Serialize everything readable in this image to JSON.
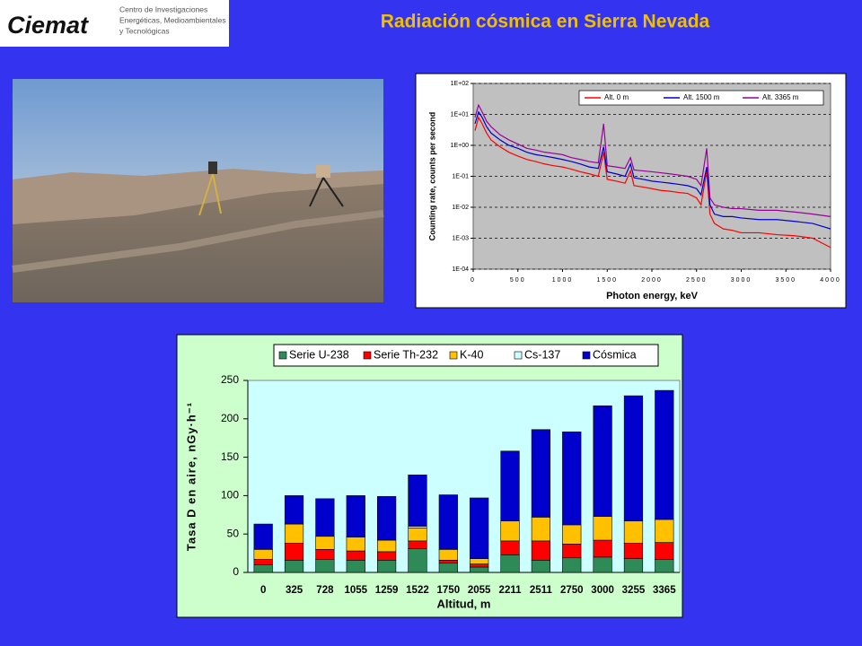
{
  "header": {
    "logo": "Ciemat",
    "logo_lines": [
      "Centro de Investigaciones",
      "Energéticas, Medioambientales",
      "y Tecnológicas"
    ],
    "title": "Radiación cósmica en Sierra Nevada"
  },
  "chart_data": [
    {
      "type": "line",
      "x_label": "Photon energy, keV",
      "y_label": "Counting rate, counts per second",
      "log_y": true,
      "grid": true,
      "legend": "upper right",
      "xlim": [
        0,
        4000
      ],
      "xticks": [
        0,
        500,
        1000,
        1500,
        2000,
        2500,
        3000,
        3500,
        4000
      ],
      "ylim": [
        0.0001,
        100
      ],
      "yticks": [
        {
          "value": 0.0001,
          "label": "1E-04"
        },
        {
          "value": 0.001,
          "label": "1E-03"
        },
        {
          "value": 0.01,
          "label": "1E-02"
        },
        {
          "value": 0.1,
          "label": "1E-01"
        },
        {
          "value": 1,
          "label": "1E+00"
        },
        {
          "value": 10,
          "label": "1E+01"
        },
        {
          "value": 100,
          "label": "1E+02"
        }
      ],
      "x": [
        20,
        60,
        100,
        150,
        200,
        300,
        400,
        500,
        600,
        700,
        800,
        900,
        1000,
        1100,
        1200,
        1300,
        1400,
        1460,
        1500,
        1600,
        1700,
        1760,
        1800,
        1900,
        2000,
        2100,
        2200,
        2300,
        2400,
        2500,
        2550,
        2614,
        2650,
        2700,
        2800,
        2900,
        3000,
        3200,
        3400,
        3600,
        3800,
        4000
      ],
      "series": [
        {
          "name": "Alt. 0 m",
          "color": "#ff0000",
          "values": [
            3,
            8,
            5,
            2.5,
            1.5,
            0.9,
            0.6,
            0.45,
            0.35,
            0.3,
            0.25,
            0.22,
            0.2,
            0.17,
            0.14,
            0.12,
            0.1,
            0.6,
            0.08,
            0.07,
            0.06,
            0.15,
            0.05,
            0.045,
            0.04,
            0.035,
            0.033,
            0.03,
            0.028,
            0.02,
            0.012,
            0.15,
            0.006,
            0.003,
            0.002,
            0.0018,
            0.0015,
            0.0015,
            0.0013,
            0.0012,
            0.001,
            0.0005
          ]
        },
        {
          "name": "Alt. 1500 m",
          "color": "#0000cc",
          "values": [
            5,
            12,
            8,
            4,
            2.5,
            1.5,
            1,
            0.8,
            0.6,
            0.5,
            0.45,
            0.4,
            0.35,
            0.3,
            0.25,
            0.2,
            0.18,
            0.9,
            0.14,
            0.12,
            0.1,
            0.25,
            0.09,
            0.08,
            0.07,
            0.065,
            0.06,
            0.055,
            0.05,
            0.04,
            0.025,
            0.2,
            0.012,
            0.006,
            0.005,
            0.005,
            0.0045,
            0.004,
            0.004,
            0.0035,
            0.003,
            0.002
          ]
        },
        {
          "name": "Alt. 3365 m",
          "color": "#990099",
          "values": [
            8,
            20,
            12,
            6,
            4,
            2.2,
            1.5,
            1.1,
            0.8,
            0.7,
            0.6,
            0.55,
            0.5,
            0.4,
            0.35,
            0.3,
            0.27,
            5,
            0.22,
            0.2,
            0.18,
            0.4,
            0.16,
            0.15,
            0.14,
            0.13,
            0.12,
            0.11,
            0.1,
            0.08,
            0.05,
            0.8,
            0.02,
            0.012,
            0.01,
            0.009,
            0.009,
            0.008,
            0.008,
            0.007,
            0.006,
            0.005
          ]
        }
      ]
    },
    {
      "type": "stacked_bar",
      "x_label": "Altitud, m",
      "y_label": "Tasa D en aire, nGy·h⁻¹",
      "legend": "top",
      "grid": false,
      "ylim": [
        0,
        250
      ],
      "yticks": [
        0,
        50,
        100,
        150,
        200,
        250
      ],
      "categories": [
        "0",
        "325",
        "728",
        "1055",
        "1259",
        "1522",
        "1750",
        "2055",
        "2211",
        "2511",
        "2750",
        "3000",
        "3255",
        "3365"
      ],
      "series": [
        {
          "name": "Serie U-238",
          "color": "#2e8b57",
          "values": [
            10,
            16,
            17,
            16,
            16,
            31,
            12,
            7,
            23,
            16,
            19,
            20,
            18,
            17
          ]
        },
        {
          "name": "Serie Th-232",
          "color": "#ff0000",
          "values": [
            7,
            22,
            13,
            12,
            11,
            10,
            4,
            4,
            18,
            25,
            18,
            22,
            20,
            22
          ]
        },
        {
          "name": "K-40",
          "color": "#ffc000",
          "values": [
            13,
            25,
            17,
            18,
            15,
            17,
            14,
            7,
            26,
            31,
            25,
            31,
            29,
            30
          ]
        },
        {
          "name": "Cs-137",
          "color": "#ccffff",
          "values": [
            0,
            0,
            0,
            0,
            0,
            2,
            0,
            0,
            0,
            0,
            0,
            0,
            0,
            0
          ]
        },
        {
          "name": "Cósmica",
          "color": "#0000cc",
          "values": [
            33,
            37,
            49,
            54,
            57,
            67,
            71,
            79,
            91,
            114,
            121,
            144,
            163,
            168
          ]
        }
      ]
    }
  ]
}
